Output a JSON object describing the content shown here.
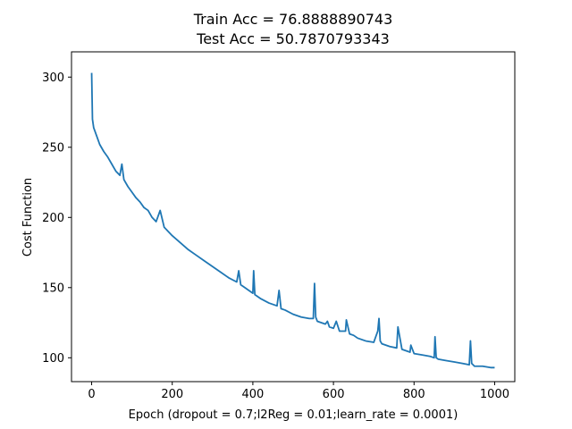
{
  "chart_data": {
    "type": "line",
    "title_lines": [
      "Train Acc = 76.8888890743",
      "Test Acc = 50.7870793343"
    ],
    "xlabel": "Epoch (dropout = 0.7;l2Reg = 0.01;learn_rate = 0.0001)",
    "ylabel": "Cost Function",
    "xlim": [
      -50,
      1050
    ],
    "ylim": [
      83,
      318
    ],
    "x_ticks": [
      0,
      200,
      400,
      600,
      800,
      1000
    ],
    "x_tick_labels": [
      "0",
      "200",
      "400",
      "600",
      "800",
      "1000"
    ],
    "y_ticks": [
      100,
      150,
      200,
      250,
      300
    ],
    "y_tick_labels": [
      "100",
      "150",
      "200",
      "250",
      "300"
    ],
    "grid": false,
    "line_color": "#1f77b4",
    "series": [
      {
        "x": [
          0,
          2,
          5,
          10,
          15,
          20,
          30,
          40,
          50,
          60,
          70,
          75,
          80,
          90,
          100,
          110,
          120,
          130,
          140,
          150,
          160,
          170,
          175,
          180,
          200,
          220,
          240,
          260,
          280,
          300,
          320,
          340,
          360,
          365,
          370,
          380,
          400,
          402,
          405,
          420,
          440,
          460,
          465,
          470,
          480,
          500,
          520,
          540,
          550,
          553,
          556,
          560,
          580,
          585,
          590,
          600,
          607,
          615,
          630,
          632,
          640,
          650,
          660,
          680,
          700,
          710,
          713,
          716,
          720,
          740,
          757,
          760,
          770,
          790,
          792,
          800,
          820,
          840,
          850,
          852,
          855,
          860,
          880,
          900,
          920,
          937,
          940,
          943,
          950,
          970,
          990,
          1000
        ],
        "y": [
          303,
          270,
          264,
          260,
          256,
          252,
          247,
          243,
          238,
          233,
          230,
          238,
          227,
          222,
          218,
          214,
          211,
          207,
          205,
          200,
          197,
          205,
          199,
          193,
          187,
          182,
          177,
          173,
          169,
          165,
          161,
          157,
          154,
          162,
          152,
          150,
          146,
          162,
          145,
          142,
          139,
          137,
          148,
          135,
          134,
          131,
          129,
          128,
          128,
          153,
          129,
          126,
          124,
          126,
          122,
          121,
          126,
          119,
          119,
          127,
          117,
          116,
          114,
          112,
          111,
          119,
          128,
          112,
          110,
          108,
          107,
          122,
          106,
          104,
          109,
          103,
          102,
          101,
          100,
          115,
          100,
          99,
          98,
          97,
          96,
          95,
          112,
          96,
          94,
          94,
          93,
          93
        ]
      }
    ]
  }
}
